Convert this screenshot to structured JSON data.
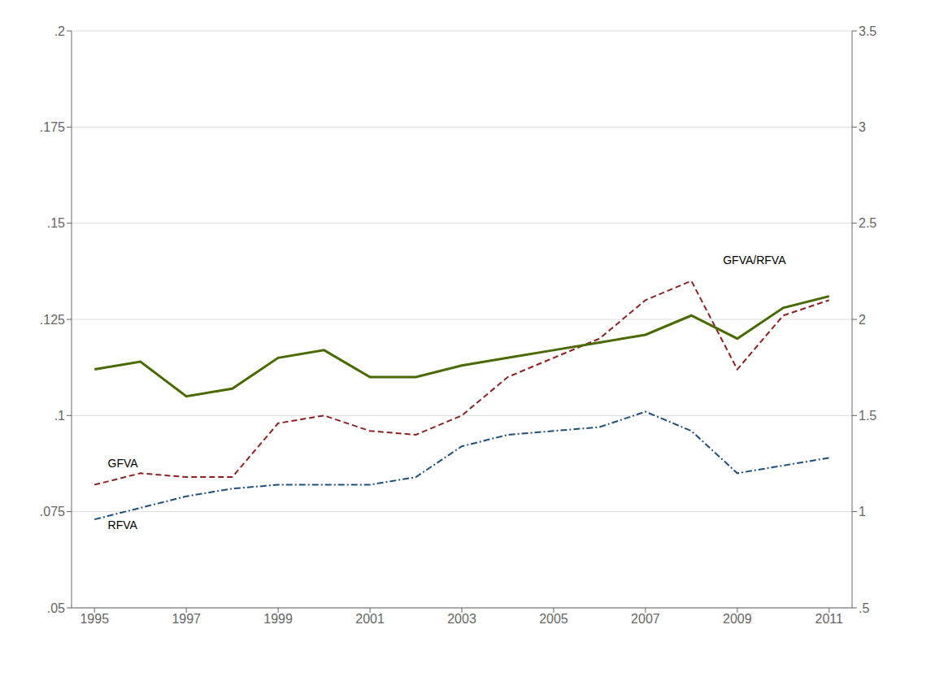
{
  "chart_data": {
    "type": "line",
    "x": [
      1995,
      1996,
      1997,
      1998,
      1999,
      2000,
      2001,
      2002,
      2003,
      2004,
      2005,
      2006,
      2007,
      2008,
      2009,
      2010,
      2011
    ],
    "series": [
      {
        "name": "GFVA",
        "color": "#8B2222",
        "line_style": "dashed",
        "values": [
          0.082,
          0.085,
          0.084,
          0.084,
          0.098,
          0.1,
          0.096,
          0.095,
          0.1,
          0.11,
          0.115,
          0.12,
          0.13,
          0.135,
          0.112,
          0.126,
          0.13
        ]
      },
      {
        "name": "RFVA",
        "color": "#1F4E79",
        "line_style": "dashdot",
        "values": [
          0.073,
          0.076,
          0.079,
          0.081,
          0.082,
          0.082,
          0.082,
          0.084,
          0.092,
          0.095,
          0.096,
          0.097,
          0.101,
          0.096,
          0.085,
          0.087,
          0.089
        ]
      },
      {
        "name": "GFVA/RFVA",
        "color": "#4A6A00",
        "line_style": "solid",
        "values": [
          0.112,
          0.114,
          0.105,
          0.107,
          0.115,
          0.117,
          0.11,
          0.11,
          0.113,
          0.115,
          0.117,
          0.119,
          0.121,
          0.126,
          0.12,
          0.128,
          0.131
        ]
      }
    ],
    "xlim": [
      1994.5,
      2011.5
    ],
    "xticks": [
      1995,
      1997,
      1999,
      2001,
      2003,
      2005,
      2007,
      2009,
      2011
    ],
    "ylim": [
      0.05,
      0.2
    ],
    "yticks": [
      {
        "value": 0.05,
        "label": ".05"
      },
      {
        "value": 0.075,
        "label": ".075"
      },
      {
        "value": 0.1,
        "label": ".1"
      },
      {
        "value": 0.125,
        "label": ".125"
      },
      {
        "value": 0.15,
        "label": ".15"
      },
      {
        "value": 0.175,
        "label": ".175"
      },
      {
        "value": 0.2,
        "label": ".2"
      }
    ],
    "y2lim": [
      0.5,
      3.5
    ],
    "y2ticks": [
      {
        "value": 0.5,
        "label": ".5"
      },
      1,
      1.5,
      2,
      2.5,
      3,
      3.5
    ],
    "grid": true,
    "annotations": [
      {
        "text": "GFVA",
        "x": 1995.2,
        "y": 0.0875
      },
      {
        "text": "RFVA",
        "x": 1995.2,
        "y": 0.0715
      },
      {
        "text": "GFVA/RFVA",
        "x": 2008.6,
        "y": 0.1405
      }
    ]
  }
}
